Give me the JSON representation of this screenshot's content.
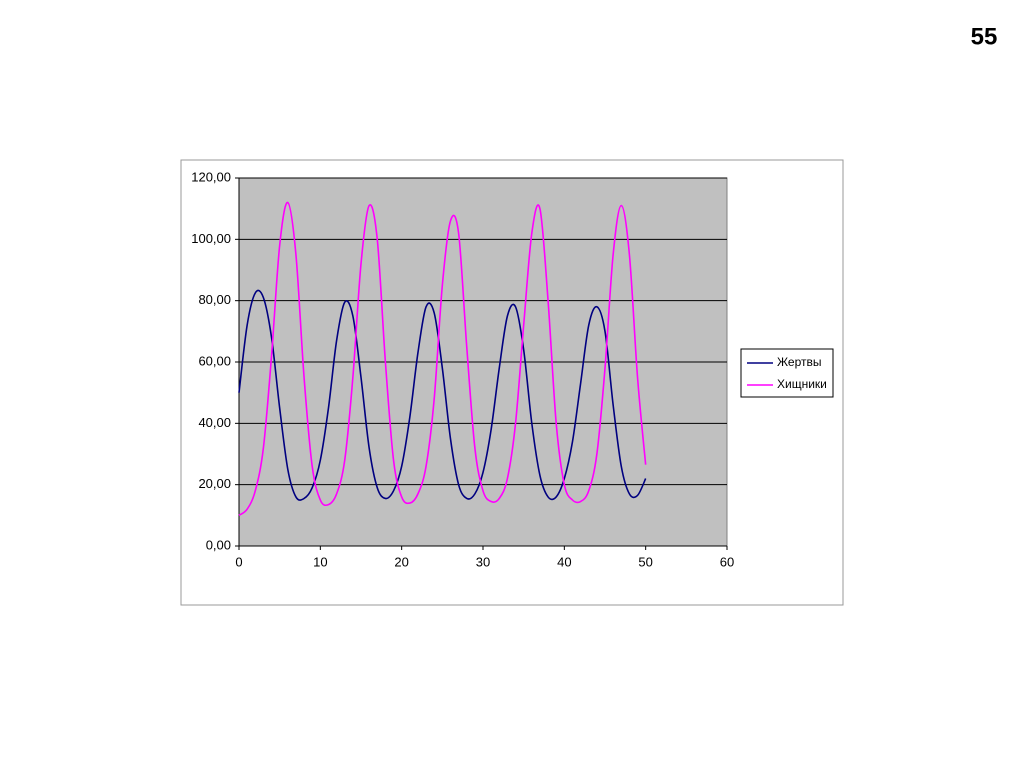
{
  "page_number": "55",
  "chart_data": {
    "type": "line",
    "x": [
      0,
      1,
      2,
      3,
      4,
      5,
      6,
      7,
      8,
      9,
      10,
      11,
      12,
      13,
      14,
      15,
      16,
      17,
      18,
      19,
      20,
      21,
      22,
      23,
      24,
      25,
      26,
      27,
      28,
      29,
      30,
      31,
      32,
      33,
      34,
      35,
      36,
      37,
      38,
      39,
      40,
      41,
      42,
      43,
      44,
      45,
      46,
      47,
      48,
      49,
      50
    ],
    "series": [
      {
        "name": "Жертвы",
        "color": "#000080",
        "values": [
          50,
          72,
          82.5,
          81,
          68,
          45,
          25,
          16,
          15.5,
          19,
          28,
          45,
          67,
          79.5,
          75,
          55,
          32,
          19,
          15.5,
          18,
          26,
          42,
          63,
          78,
          76,
          58,
          35,
          20,
          15.5,
          17,
          24,
          38,
          58,
          75,
          78,
          64,
          40,
          23,
          16,
          16,
          22,
          34,
          53,
          72,
          78,
          70,
          46,
          26,
          17,
          16.5,
          22
        ]
      },
      {
        "name": "Хищники",
        "color": "#ff00ff",
        "values": [
          10,
          12,
          18,
          32,
          62,
          98,
          112,
          95,
          55,
          26,
          15,
          13.5,
          17,
          28,
          55,
          92,
          111,
          100,
          60,
          28,
          16,
          14,
          17,
          26,
          48,
          85,
          106,
          102,
          65,
          32,
          18,
          14.5,
          15.5,
          22,
          40,
          72,
          102,
          110,
          80,
          40,
          20,
          15,
          14.5,
          18,
          30,
          58,
          95,
          111,
          95,
          55,
          26.5
        ]
      }
    ],
    "xlim": [
      0,
      60
    ],
    "xticks": [
      0,
      10,
      20,
      30,
      40,
      50,
      60
    ],
    "ylim": [
      0,
      120
    ],
    "yticks": [
      {
        "value": 0,
        "label": "0,00"
      },
      {
        "value": 20,
        "label": "20,00"
      },
      {
        "value": 40,
        "label": "40,00"
      },
      {
        "value": 60,
        "label": "60,00"
      },
      {
        "value": 80,
        "label": "80,00"
      },
      {
        "value": 100,
        "label": "100,00"
      },
      {
        "value": 120,
        "label": "120,00"
      }
    ],
    "grid": true,
    "legend": "right",
    "plot_background": "#c0c0c0"
  }
}
